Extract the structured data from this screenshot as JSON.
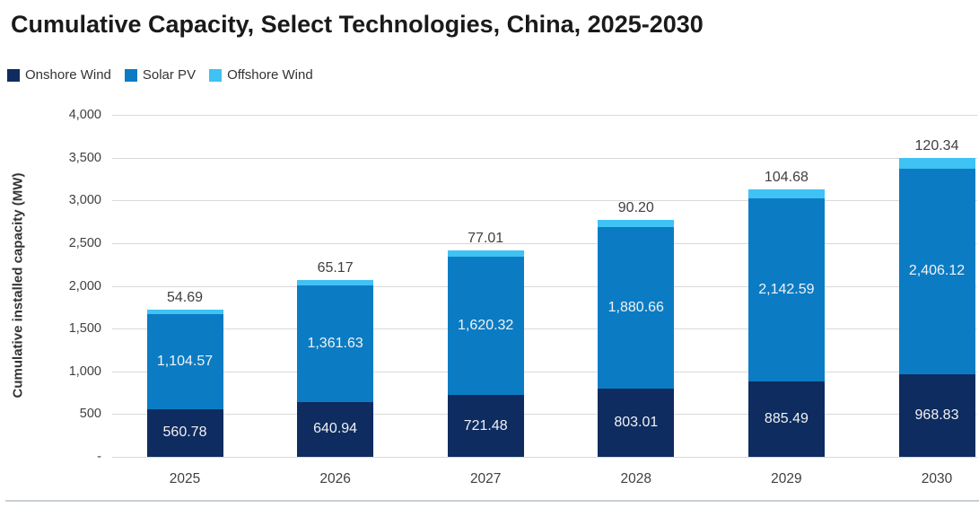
{
  "title": "Cumulative Capacity, Select Technologies, China, 2025-2030",
  "chart_data": {
    "type": "bar",
    "stacked": true,
    "title": "Cumulative Capacity, Select Technologies, China, 2025-2030",
    "categories": [
      "2025",
      "2026",
      "2027",
      "2028",
      "2029",
      "2030"
    ],
    "series": [
      {
        "name": "Onshore Wind",
        "color": "#0e2c60",
        "label_color": "#f2f2f2",
        "label_position": "inside",
        "values": [
          560.78,
          640.94,
          721.48,
          803.01,
          885.49,
          968.83
        ],
        "labels": [
          "560.78",
          "640.94",
          "721.48",
          "803.01",
          "885.49",
          "968.83"
        ]
      },
      {
        "name": "Solar PV",
        "color": "#0b7cc4",
        "label_color": "#f2f2f2",
        "label_position": "inside",
        "values": [
          1104.57,
          1361.63,
          1620.32,
          1880.66,
          2142.59,
          2406.12
        ],
        "labels": [
          "1,104.57",
          "1,361.63",
          "1,620.32",
          "1,880.66",
          "2,142.59",
          "2,406.12"
        ]
      },
      {
        "name": "Offshore Wind",
        "color": "#3fc2f4",
        "label_color": "#404040",
        "label_position": "above",
        "values": [
          54.69,
          65.17,
          77.01,
          90.2,
          104.68,
          120.34
        ],
        "labels": [
          "54.69",
          "65.17",
          "77.01",
          "90.20",
          "104.68",
          "120.34"
        ]
      }
    ],
    "xlabel": "",
    "ylabel": "Cumulative installed capacity (MW)",
    "ylim": [
      0,
      4000
    ],
    "ytick_interval": 500,
    "yticks_top_to_bottom": [
      "4,000",
      "3,500",
      "3,000",
      "2,500",
      "2,000",
      "1,500",
      "1,000",
      "500",
      "-"
    ],
    "grid": true,
    "legend_position": "top-left",
    "colors": {
      "grid": "#d9d9d9",
      "axis_text": "#404040",
      "title_text": "#1a1a1a",
      "bottom_rule": "#c9cfd6"
    }
  }
}
